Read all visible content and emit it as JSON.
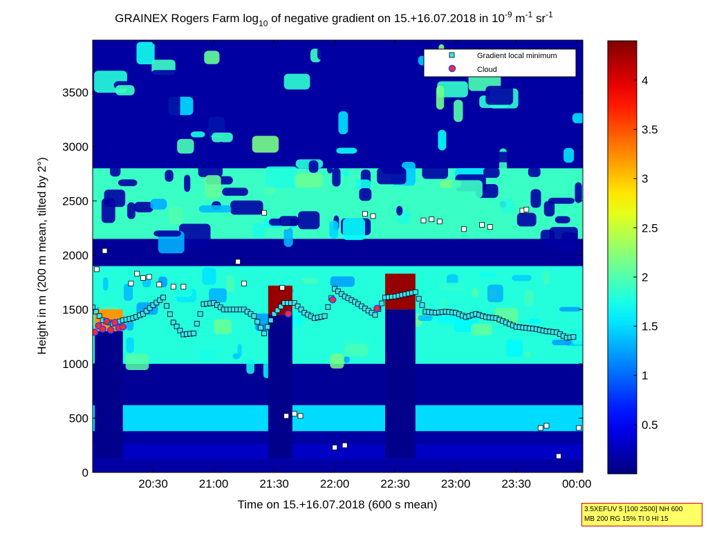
{
  "chart_data": {
    "type": "heatmap",
    "title": {
      "pre": "GRAINEX Rogers Farm log",
      "sub": "10",
      "mid": " of negative gradient on 15.+16.07.2018 in 10",
      "sup1": "-9",
      "mid2": " m",
      "sup2": "-1",
      "mid3": " sr",
      "sup3": "-1"
    },
    "xlabel": "Time on 15.+16.07.2018 (600 s mean)",
    "ylabel": "Height in m (200 m mean, tilted by 2°)",
    "x_ticks": [
      "20:30",
      "21:00",
      "21:30",
      "22:00",
      "22:30",
      "23:00",
      "23:30",
      "00:00"
    ],
    "x_tick_minutes": [
      1230,
      1260,
      1290,
      1320,
      1350,
      1380,
      1410,
      1440
    ],
    "xlim_minutes": [
      1200,
      1443
    ],
    "y_ticks": [
      0,
      500,
      1000,
      1500,
      2000,
      2500,
      3000,
      3500
    ],
    "ylim": [
      0,
      3980
    ],
    "colorbar": {
      "min": 0,
      "max": 4.4,
      "ticks": [
        0.5,
        1,
        1.5,
        2,
        2.5,
        3,
        3.5,
        4
      ]
    },
    "legend": {
      "position": "top-right",
      "entries": [
        "Gradient local minimum",
        "Cloud"
      ]
    },
    "colors": {
      "min_marker": "#40e0f0",
      "cloud_marker": "#ff2a2a",
      "cloud_edge": "#2a3cff"
    },
    "layers": [
      {
        "name": "surface-layer",
        "z0": 120,
        "z1": 260,
        "level": 0.3
      },
      {
        "name": "lower-band",
        "z0": 380,
        "z1": 620,
        "level": 1.5
      },
      {
        "name": "mid-gap",
        "z0": 620,
        "z1": 1000,
        "level": 0.1
      },
      {
        "name": "boundary-band",
        "z0": 1000,
        "z1": 1900,
        "level": 1.8
      },
      {
        "name": "upper-gap",
        "z0": 1900,
        "z1": 2150,
        "level": 0.1
      },
      {
        "name": "upper-band",
        "z0": 2150,
        "z1": 2800,
        "level": 1.9
      }
    ],
    "cloud_blocks": [
      {
        "t0": 1287,
        "t1": 1299,
        "z0": 1450,
        "z1": 1720,
        "level": 4.3
      },
      {
        "t0": 1345,
        "t1": 1360,
        "z0": 1500,
        "z1": 1830,
        "level": 4.3
      },
      {
        "t0": 1201,
        "t1": 1215,
        "z0": 1300,
        "z1": 1500,
        "level": 3.2
      }
    ],
    "gradient_minimum": {
      "t": [
        1200,
        1205,
        1210,
        1215,
        1220,
        1225,
        1230,
        1235,
        1240,
        1245,
        1250,
        1255,
        1260,
        1265,
        1270,
        1275,
        1280,
        1285,
        1290,
        1295,
        1300,
        1305,
        1310,
        1315,
        1320,
        1325,
        1330,
        1335,
        1340,
        1345,
        1350,
        1355,
        1360,
        1365,
        1370,
        1375,
        1380,
        1385,
        1390,
        1395,
        1400,
        1405,
        1410,
        1415,
        1420,
        1425,
        1430,
        1435,
        1440
      ],
      "z": [
        1520,
        1400,
        1370,
        1400,
        1420,
        1460,
        1540,
        1610,
        1380,
        1270,
        1280,
        1550,
        1560,
        1500,
        1500,
        1500,
        1440,
        1280,
        1460,
        1560,
        1560,
        1470,
        1420,
        1440,
        1690,
        1620,
        1570,
        1510,
        1450,
        1610,
        1620,
        1640,
        1660,
        1480,
        1470,
        1480,
        1470,
        1430,
        1460,
        1430,
        1420,
        1380,
        1340,
        1330,
        1320,
        1300,
        1290,
        1240,
        1250
      ]
    },
    "cloud_points": {
      "t": [
        1201,
        1203,
        1205,
        1207,
        1209,
        1211,
        1213,
        1215,
        1297,
        1319,
        1341
      ],
      "z": [
        1290,
        1350,
        1320,
        1390,
        1310,
        1380,
        1330,
        1340,
        1460,
        1590,
        1510
      ]
    },
    "scatter_points": {
      "t": [
        1202,
        1206,
        1219,
        1222,
        1225,
        1228,
        1233,
        1240,
        1245,
        1272,
        1275,
        1285,
        1294,
        1296,
        1300,
        1303,
        1320,
        1325,
        1335,
        1339,
        1364,
        1368,
        1372,
        1384,
        1393,
        1397,
        1413,
        1415,
        1422,
        1425,
        1431,
        1441
      ],
      "z": [
        1870,
        2040,
        1740,
        1830,
        1790,
        1800,
        1730,
        1710,
        1710,
        1940,
        1740,
        2390,
        1700,
        520,
        540,
        520,
        230,
        250,
        2380,
        2360,
        2320,
        2330,
        2310,
        2240,
        2280,
        2260,
        2410,
        2420,
        410,
        430,
        150,
        410
      ]
    }
  },
  "info_box": {
    "line1": "3.5XEFUV 5 [100 2500] NH 600",
    "line2": "MB 200 RG 15% TI 0 HI 15"
  }
}
